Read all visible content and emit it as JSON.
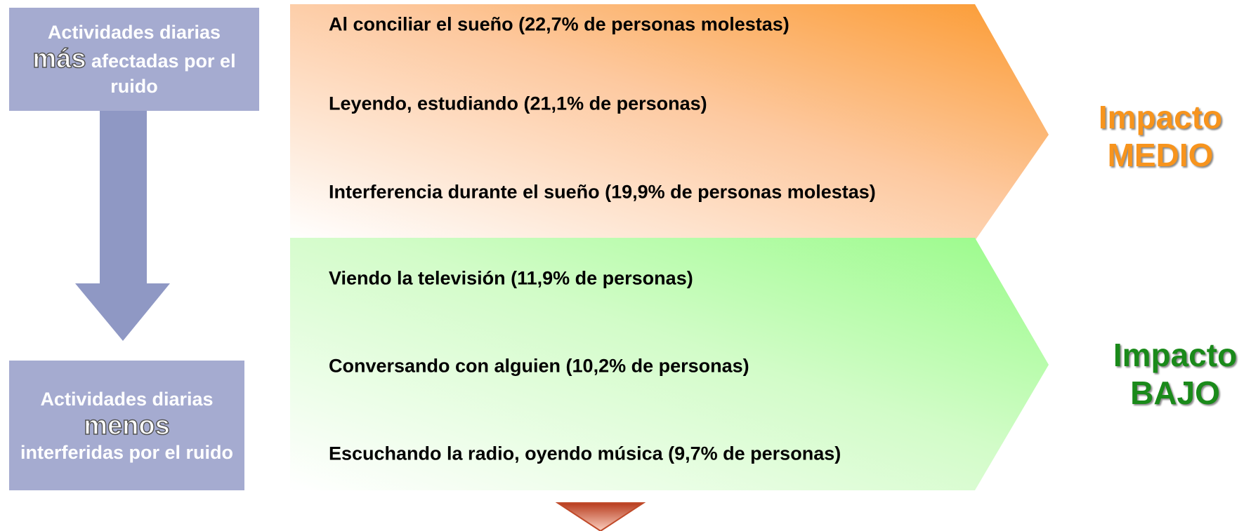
{
  "left_top": {
    "line1": "Actividades diarias",
    "emphasis": "más",
    "rest": "afectadas por el ruido"
  },
  "left_bottom": {
    "line1": "Actividades diarias",
    "emphasis": "menos",
    "rest": "interferidas por el ruido"
  },
  "medium": {
    "items": [
      "Al conciliar el sueño (22,7% de personas molestas)",
      "Leyendo, estudiando (21,1% de personas)",
      "Interferencia durante el sueño (19,9% de personas molestas)"
    ],
    "label_line1": "Impacto",
    "label_line2": "MEDIO"
  },
  "low": {
    "items": [
      "Viendo la televisión (11,9% de personas)",
      "Conversando con alguien (10,2% de personas)",
      "Escuchando la radio, oyendo música (9,7% de personas)"
    ],
    "label_line1": "Impacto",
    "label_line2": "BAJO"
  }
}
